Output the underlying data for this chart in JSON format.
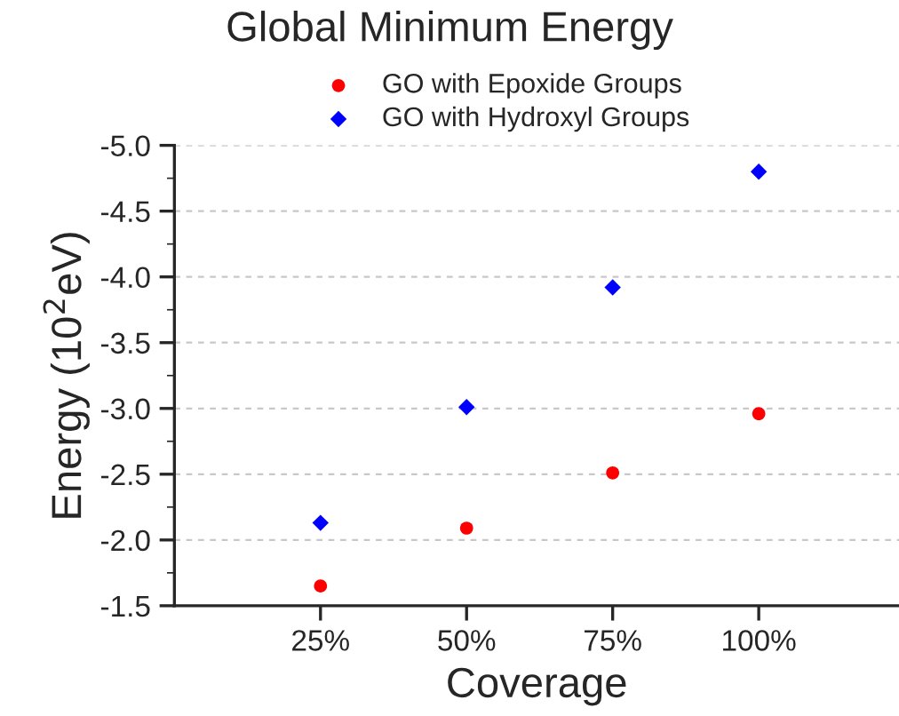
{
  "chart_data": {
    "type": "scatter",
    "title": "Global Minimum Energy",
    "xlabel": "Coverage",
    "ylabel": "Energy (10$^{2}$eV)",
    "categories": [
      "25%",
      "50%",
      "75%",
      "100%"
    ],
    "series": [
      {
        "name": "GO with Epoxide Groups",
        "color": "#ff0000",
        "marker": "circle",
        "values": [
          -1.65,
          -2.09,
          -2.51,
          -2.96
        ]
      },
      {
        "name": "GO with Hydroxyl Groups",
        "color": "#0000ff",
        "marker": "diamond",
        "values": [
          -2.13,
          -3.01,
          -3.92,
          -4.8
        ]
      }
    ],
    "ylim": [
      -1.5,
      -5.0
    ],
    "yticks": [
      -1.5,
      {
        "value": -2,
        "label": "-2.0"
      },
      -2.5,
      {
        "value": -3,
        "label": "-3.0"
      },
      -3.5,
      {
        "value": -4,
        "label": "-4.0"
      },
      -4.5,
      {
        "value": -5,
        "label": "-5.0"
      }
    ],
    "grid": "y",
    "legend": "top"
  }
}
